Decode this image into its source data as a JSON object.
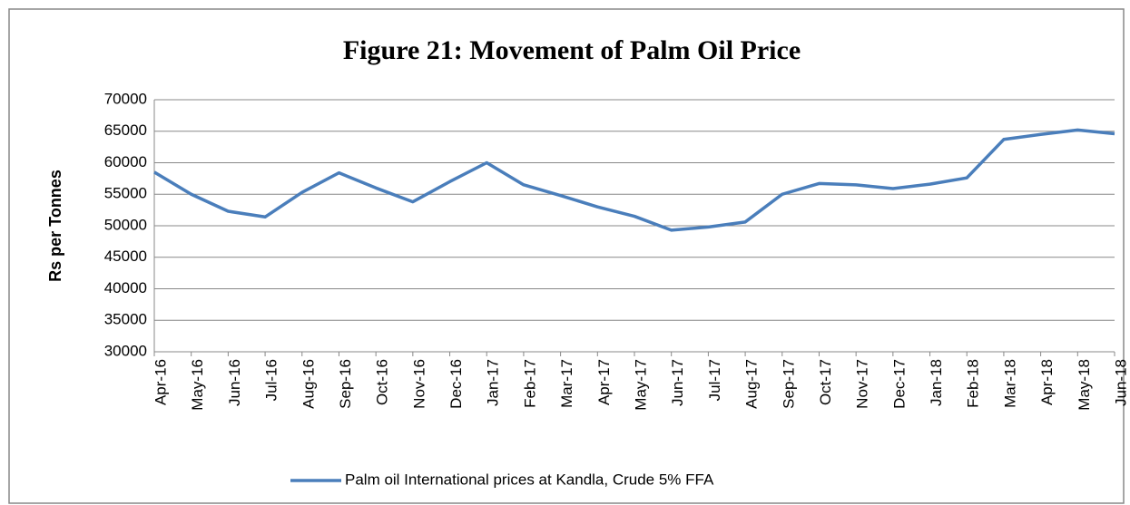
{
  "chart_data": {
    "type": "line",
    "title": "Figure 21: Movement of  Palm Oil Price",
    "y_label": "Rs per Tonnes",
    "categories": [
      "Apr-16",
      "May-16",
      "Jun-16",
      "Jul-16",
      "Aug-16",
      "Sep-16",
      "Oct-16",
      "Nov-16",
      "Dec-16",
      "Jan-17",
      "Feb-17",
      "Mar-17",
      "Apr-17",
      "May-17",
      "Jun-17",
      "Jul-17",
      "Aug-17",
      "Sep-17",
      "Oct-17",
      "Nov-17",
      "Dec-17",
      "Jan-18",
      "Feb-18",
      "Mar-18",
      "Apr-18",
      "May-18",
      "Jun-18"
    ],
    "series": [
      {
        "name": "Palm oil International prices at Kandla, Crude 5% FFA",
        "color": "#4a7ebb",
        "values": [
          58500,
          55000,
          52300,
          51400,
          55300,
          58400,
          56000,
          53800,
          57000,
          60000,
          56500,
          54800,
          53000,
          51500,
          49300,
          49800,
          50600,
          55000,
          56700,
          56500,
          55900,
          56600,
          57600,
          63700,
          64500,
          65200,
          64600
        ]
      }
    ],
    "ylim": [
      30000,
      70000
    ],
    "yticks": [
      30000,
      35000,
      40000,
      45000,
      50000,
      55000,
      60000,
      65000,
      70000
    ],
    "grid": true,
    "legend": "bottom"
  }
}
